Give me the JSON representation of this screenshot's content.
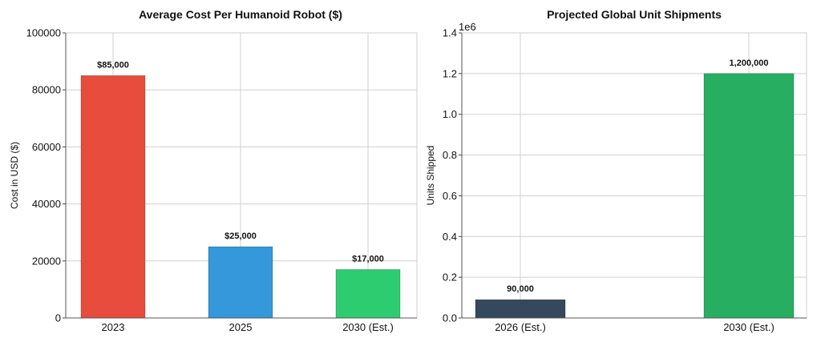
{
  "chart_data": [
    {
      "type": "bar",
      "title": "Average Cost Per Humanoid Robot ($)",
      "xlabel": "",
      "ylabel": "Cost in USD ($)",
      "categories": [
        "2023",
        "2025",
        "2030 (Est.)"
      ],
      "values": [
        85000,
        25000,
        17000
      ],
      "data_labels": [
        "$85,000",
        "$25,000",
        "$17,000"
      ],
      "colors": [
        "#e74c3c",
        "#3498db",
        "#2ecc71"
      ],
      "ylim": [
        0,
        100000
      ],
      "yticks": [
        0,
        20000,
        40000,
        60000,
        80000,
        100000
      ],
      "ytick_labels": [
        "0",
        "20000",
        "40000",
        "60000",
        "80000",
        "100000"
      ],
      "grid": true
    },
    {
      "type": "bar",
      "title": "Projected Global Unit Shipments",
      "xlabel": "",
      "ylabel": "Units Shipped",
      "categories": [
        "2026 (Est.)",
        "2030 (Est.)"
      ],
      "values": [
        90000,
        1200000
      ],
      "data_labels": [
        "90,000",
        "1,200,000"
      ],
      "colors": [
        "#34495e",
        "#27ae60"
      ],
      "ylim": [
        0,
        1400000
      ],
      "yticks": [
        0,
        200000,
        400000,
        600000,
        800000,
        1000000,
        1200000,
        1400000
      ],
      "ytick_labels": [
        "0.0",
        "0.2",
        "0.4",
        "0.6",
        "0.8",
        "1.0",
        "1.2",
        "1.4"
      ],
      "axis_offset_text": "1e6",
      "grid": true
    }
  ]
}
